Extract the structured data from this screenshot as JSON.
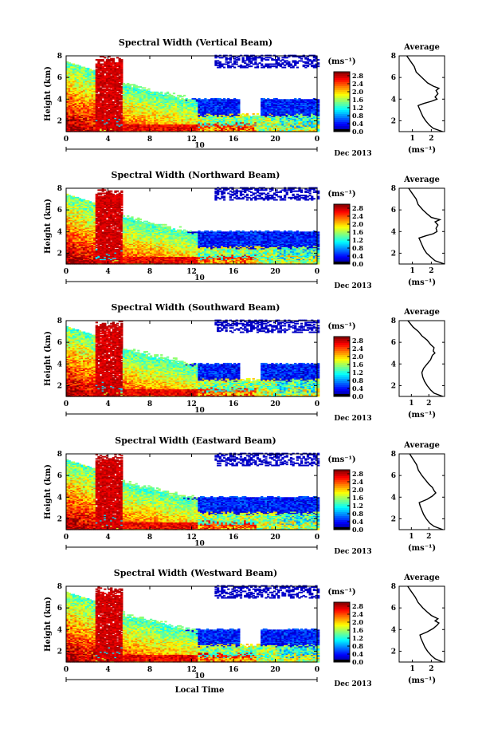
{
  "chart_data": [
    {
      "type": "heatmap",
      "title": "Spectral Width (Vertical Beam)",
      "ylabel": "Height (km)",
      "x_ticks": [
        "0",
        "4",
        "8",
        "12",
        "16",
        "20",
        "0"
      ],
      "y_ticks": [
        "2",
        "4",
        "6",
        "8"
      ],
      "day_label": "10",
      "month_label": "Dec 2013",
      "xlim": [
        0,
        24
      ],
      "ylim": [
        1,
        8
      ],
      "colorbar": {
        "unit": "(ms⁻¹)",
        "ticks": [
          "0.0",
          "0.4",
          "0.8",
          "1.2",
          "1.6",
          "2.0",
          "2.4",
          "2.8"
        ],
        "range": [
          0,
          3.0
        ]
      },
      "average": {
        "title": "Average",
        "xlabel": "(ms⁻¹)",
        "x_ticks": [
          "1",
          "2"
        ],
        "y_ticks": [
          "2",
          "4",
          "6",
          "8"
        ],
        "xlim": [
          0.3,
          2.7
        ],
        "ylim": [
          1,
          8
        ],
        "profile": [
          [
            1.0,
            2.6
          ],
          [
            1.3,
            2.1
          ],
          [
            1.6,
            1.9
          ],
          [
            2.0,
            1.7
          ],
          [
            2.4,
            1.55
          ],
          [
            2.8,
            1.45
          ],
          [
            3.2,
            1.35
          ],
          [
            3.4,
            1.3
          ],
          [
            3.6,
            1.6
          ],
          [
            3.8,
            2.0
          ],
          [
            4.0,
            2.3
          ],
          [
            4.2,
            2.2
          ],
          [
            4.5,
            2.35
          ],
          [
            4.8,
            2.25
          ],
          [
            5.0,
            2.4
          ],
          [
            5.2,
            2.1
          ],
          [
            5.5,
            1.8
          ],
          [
            6.0,
            1.5
          ],
          [
            6.5,
            1.2
          ],
          [
            7.0,
            1.1
          ],
          [
            7.5,
            0.9
          ],
          [
            8.0,
            0.7
          ]
        ]
      }
    },
    {
      "type": "heatmap",
      "title": "Spectral Width (Northward Beam)",
      "ylabel": "Height (km)",
      "x_ticks": [
        "0",
        "4",
        "8",
        "12",
        "16",
        "20",
        "0"
      ],
      "y_ticks": [
        "2",
        "4",
        "6",
        "8"
      ],
      "day_label": "10",
      "month_label": "Dec 2013",
      "xlim": [
        0,
        24
      ],
      "ylim": [
        1,
        8
      ],
      "colorbar": {
        "unit": "(ms⁻¹)",
        "ticks": [
          "0.0",
          "0.4",
          "0.8",
          "1.2",
          "1.6",
          "2.0",
          "2.4",
          "2.8"
        ],
        "range": [
          0,
          3.0
        ]
      },
      "average": {
        "title": "Average",
        "xlabel": "(ms⁻¹)",
        "x_ticks": [
          "1",
          "2"
        ],
        "y_ticks": [
          "2",
          "4",
          "6",
          "8"
        ],
        "xlim": [
          0.3,
          2.7
        ],
        "ylim": [
          1,
          8
        ],
        "profile": [
          [
            1.0,
            2.7
          ],
          [
            1.3,
            2.2
          ],
          [
            1.6,
            2.0
          ],
          [
            2.0,
            1.75
          ],
          [
            2.4,
            1.6
          ],
          [
            2.8,
            1.5
          ],
          [
            3.2,
            1.4
          ],
          [
            3.4,
            1.35
          ],
          [
            3.6,
            1.7
          ],
          [
            3.8,
            2.1
          ],
          [
            4.0,
            2.3
          ],
          [
            4.3,
            2.25
          ],
          [
            4.6,
            2.35
          ],
          [
            4.9,
            2.2
          ],
          [
            5.1,
            2.45
          ],
          [
            5.3,
            2.0
          ],
          [
            5.6,
            1.8
          ],
          [
            6.0,
            1.55
          ],
          [
            6.5,
            1.3
          ],
          [
            7.0,
            1.2
          ],
          [
            7.5,
            1.0
          ],
          [
            8.0,
            0.8
          ]
        ]
      }
    },
    {
      "type": "heatmap",
      "title": "Spectral Width (Southward Beam)",
      "ylabel": "Height (km)",
      "x_ticks": [
        "0",
        "4",
        "8",
        "12",
        "16",
        "20",
        "0"
      ],
      "y_ticks": [
        "2",
        "4",
        "6",
        "8"
      ],
      "day_label": "10",
      "month_label": "Dec 2013",
      "xlim": [
        0,
        24
      ],
      "ylim": [
        1,
        8
      ],
      "colorbar": {
        "unit": "(ms⁻¹)",
        "ticks": [
          "0.0",
          "0.4",
          "0.8",
          "1.2",
          "1.6",
          "2.0",
          "2.4",
          "2.8"
        ],
        "range": [
          0,
          3.0
        ]
      },
      "average": {
        "title": "Average",
        "xlabel": "(ms⁻¹)",
        "x_ticks": [
          "1",
          "2"
        ],
        "y_ticks": [
          "2",
          "4",
          "6",
          "8"
        ],
        "xlim": [
          0.3,
          2.9
        ],
        "ylim": [
          1,
          8
        ],
        "profile": [
          [
            1.0,
            2.8
          ],
          [
            1.3,
            2.3
          ],
          [
            1.6,
            2.1
          ],
          [
            2.0,
            1.9
          ],
          [
            2.4,
            1.75
          ],
          [
            2.8,
            1.65
          ],
          [
            3.2,
            1.6
          ],
          [
            3.6,
            1.7
          ],
          [
            4.0,
            1.9
          ],
          [
            4.4,
            2.1
          ],
          [
            4.8,
            2.2
          ],
          [
            5.0,
            2.35
          ],
          [
            5.2,
            2.25
          ],
          [
            5.5,
            2.3
          ],
          [
            5.8,
            2.1
          ],
          [
            6.2,
            1.9
          ],
          [
            6.6,
            1.6
          ],
          [
            7.0,
            1.4
          ],
          [
            7.4,
            1.1
          ],
          [
            8.0,
            0.8
          ]
        ]
      }
    },
    {
      "type": "heatmap",
      "title": "Spectral Width (Eastward Beam)",
      "ylabel": "Height (km)",
      "x_ticks": [
        "0",
        "4",
        "8",
        "12",
        "16",
        "20",
        "0"
      ],
      "y_ticks": [
        "2",
        "4",
        "6",
        "8"
      ],
      "day_label": "10",
      "month_label": "Dec 2013",
      "xlim": [
        0,
        24
      ],
      "ylim": [
        1,
        8
      ],
      "colorbar": {
        "unit": "(ms⁻¹)",
        "ticks": [
          "0.0",
          "0.4",
          "0.8",
          "1.2",
          "1.6",
          "2.0",
          "2.4",
          "2.8"
        ],
        "range": [
          0,
          3.0
        ]
      },
      "average": {
        "title": "Average",
        "xlabel": "(ms⁻¹)",
        "x_ticks": [
          "1",
          "2"
        ],
        "y_ticks": [
          "2",
          "4",
          "6",
          "8"
        ],
        "xlim": [
          0.3,
          2.9
        ],
        "ylim": [
          1,
          8
        ],
        "profile": [
          [
            1.0,
            2.8
          ],
          [
            1.3,
            2.3
          ],
          [
            1.6,
            2.05
          ],
          [
            2.0,
            1.85
          ],
          [
            2.4,
            1.7
          ],
          [
            2.8,
            1.6
          ],
          [
            3.2,
            1.5
          ],
          [
            3.5,
            1.45
          ],
          [
            3.8,
            1.9
          ],
          [
            4.1,
            2.2
          ],
          [
            4.4,
            2.4
          ],
          [
            4.6,
            2.3
          ],
          [
            4.9,
            2.2
          ],
          [
            5.2,
            2.0
          ],
          [
            5.6,
            1.8
          ],
          [
            6.0,
            1.6
          ],
          [
            6.5,
            1.4
          ],
          [
            7.0,
            1.3
          ],
          [
            7.5,
            1.1
          ],
          [
            8.0,
            0.9
          ]
        ]
      }
    },
    {
      "type": "heatmap",
      "title": "Spectral Width (Westward Beam)",
      "ylabel": "Height (km)",
      "x_ticks": [
        "0",
        "4",
        "8",
        "12",
        "16",
        "20",
        "0"
      ],
      "y_ticks": [
        "2",
        "4",
        "6",
        "8"
      ],
      "day_label": "10",
      "month_label": "Dec 2013",
      "xlabel": "Local Time",
      "xlim": [
        0,
        24
      ],
      "ylim": [
        1,
        8
      ],
      "colorbar": {
        "unit": "(ms⁻¹)",
        "ticks": [
          "0.0",
          "0.4",
          "0.8",
          "1.2",
          "1.6",
          "2.0",
          "2.4",
          "2.8"
        ],
        "range": [
          0,
          3.0
        ]
      },
      "average": {
        "title": "Average",
        "xlabel": "(ms⁻¹)",
        "x_ticks": [
          "1",
          "2"
        ],
        "y_ticks": [
          "2",
          "4",
          "6",
          "8"
        ],
        "xlim": [
          0.3,
          2.7
        ],
        "ylim": [
          1,
          8
        ],
        "profile": [
          [
            1.0,
            2.6
          ],
          [
            1.3,
            2.2
          ],
          [
            1.6,
            2.0
          ],
          [
            2.0,
            1.8
          ],
          [
            2.4,
            1.65
          ],
          [
            2.8,
            1.55
          ],
          [
            3.2,
            1.45
          ],
          [
            3.5,
            1.4
          ],
          [
            3.8,
            1.8
          ],
          [
            4.1,
            2.1
          ],
          [
            4.4,
            2.3
          ],
          [
            4.6,
            2.4
          ],
          [
            4.8,
            2.2
          ],
          [
            5.0,
            2.35
          ],
          [
            5.3,
            2.0
          ],
          [
            5.6,
            1.8
          ],
          [
            6.0,
            1.55
          ],
          [
            6.5,
            1.3
          ],
          [
            7.0,
            1.15
          ],
          [
            7.5,
            0.95
          ],
          [
            8.0,
            0.75
          ]
        ]
      }
    }
  ],
  "colors": {
    "white": "#ffffff",
    "axis": "#000000"
  }
}
